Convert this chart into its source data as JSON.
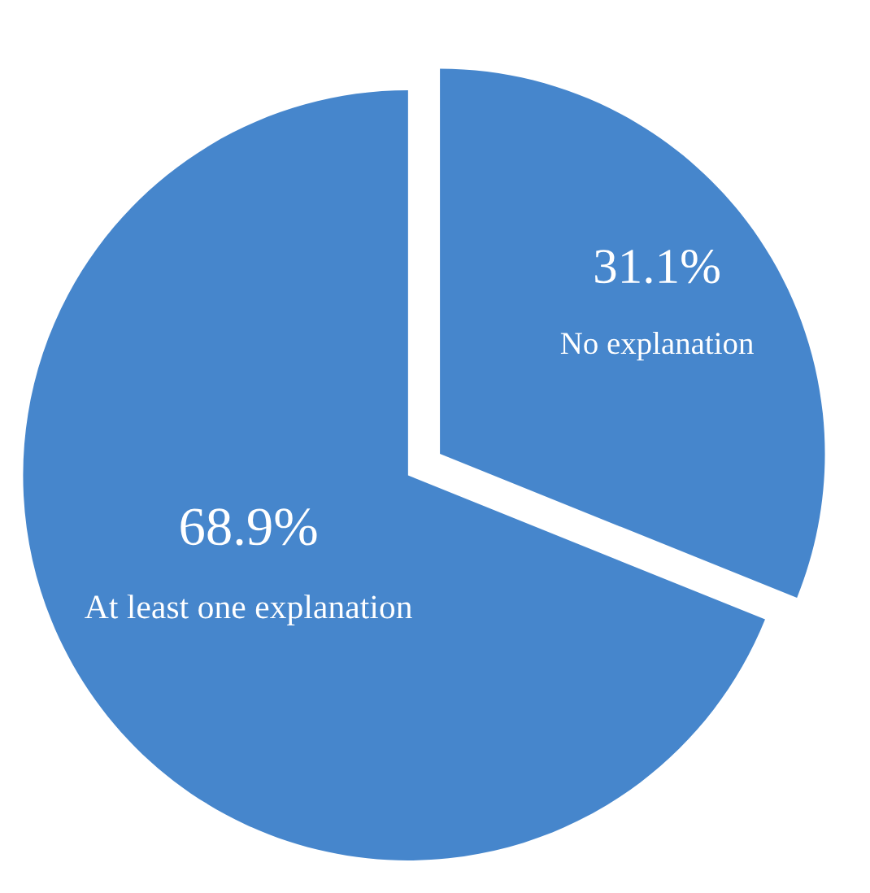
{
  "chart_data": {
    "type": "pie",
    "categories": [
      "No explanation",
      "At least one explanation"
    ],
    "values": [
      31.1,
      68.9
    ],
    "value_labels": [
      "31.1%",
      "68.9%"
    ],
    "colors": [
      "#4686cc",
      "#4686cc"
    ]
  }
}
